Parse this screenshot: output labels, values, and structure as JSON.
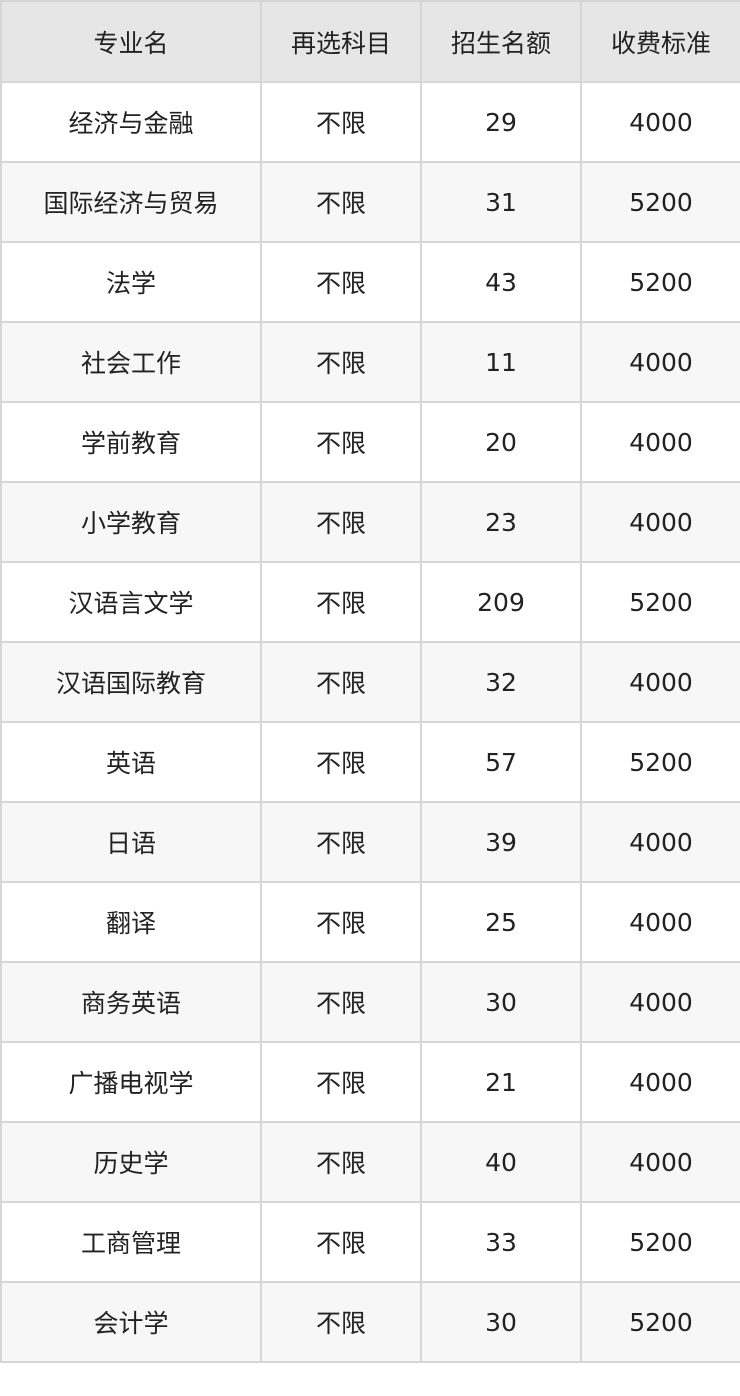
{
  "table": {
    "headers": [
      "专业名",
      "再选科目",
      "招生名额",
      "收费标准"
    ],
    "rows": [
      [
        "经济与金融",
        "不限",
        "29",
        "4000"
      ],
      [
        "国际经济与贸易",
        "不限",
        "31",
        "5200"
      ],
      [
        "法学",
        "不限",
        "43",
        "5200"
      ],
      [
        "社会工作",
        "不限",
        "11",
        "4000"
      ],
      [
        "学前教育",
        "不限",
        "20",
        "4000"
      ],
      [
        "小学教育",
        "不限",
        "23",
        "4000"
      ],
      [
        "汉语言文学",
        "不限",
        "209",
        "5200"
      ],
      [
        "汉语国际教育",
        "不限",
        "32",
        "4000"
      ],
      [
        "英语",
        "不限",
        "57",
        "5200"
      ],
      [
        "日语",
        "不限",
        "39",
        "4000"
      ],
      [
        "翻译",
        "不限",
        "25",
        "4000"
      ],
      [
        "商务英语",
        "不限",
        "30",
        "4000"
      ],
      [
        "广播电视学",
        "不限",
        "21",
        "4000"
      ],
      [
        "历史学",
        "不限",
        "40",
        "4000"
      ],
      [
        "工商管理",
        "不限",
        "33",
        "5200"
      ],
      [
        "会计学",
        "不限",
        "30",
        "5200"
      ]
    ]
  }
}
